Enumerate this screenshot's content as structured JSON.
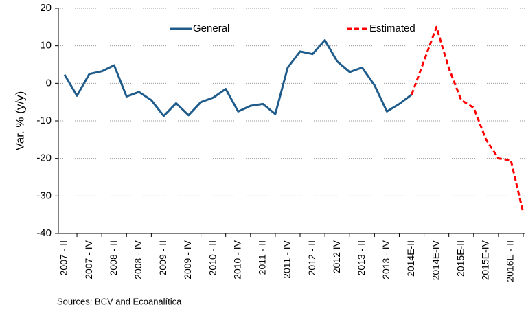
{
  "chart_data": {
    "type": "line",
    "y_label": "Var. % (y/y)",
    "source": "Sources: BCV and Ecoanalítica",
    "categories": [
      "2007 - II",
      null,
      "2007 - IV",
      null,
      "2008 - II",
      null,
      "2008 - IV",
      null,
      "2009 - II",
      null,
      "2009 - IV",
      null,
      "2010 - II",
      null,
      "2010 - IV",
      null,
      "2011 - II",
      null,
      "2011 - IV",
      null,
      "2012 - II",
      null,
      "2012 IV",
      null,
      "2013 - II",
      null,
      "2013 - IV",
      null,
      "2014E-II",
      null,
      "2014E-IV",
      null,
      "2015E-II",
      null,
      "2015E-IV",
      null,
      "2016E - II",
      null
    ],
    "series": [
      {
        "name": "General",
        "color": "#1f5c8b",
        "dash": false,
        "values": [
          2.3,
          -3.3,
          2.5,
          3.2,
          4.8,
          -3.5,
          -2.3,
          -4.5,
          -8.7,
          -5.3,
          -8.5,
          -5,
          -3.8,
          -1.5,
          -7.5,
          -6,
          -5.5,
          -8.2,
          4.2,
          8.5,
          7.8,
          11.5,
          5.8,
          3,
          4.2,
          -0.5,
          -7.5,
          -5.5,
          -3,
          null,
          null,
          null,
          null,
          null,
          null,
          null,
          null,
          null
        ]
      },
      {
        "name": "Estimated",
        "color": "#ff0000",
        "dash": true,
        "values": [
          null,
          null,
          null,
          null,
          null,
          null,
          null,
          null,
          null,
          null,
          null,
          null,
          null,
          null,
          null,
          null,
          null,
          null,
          null,
          null,
          null,
          null,
          null,
          null,
          null,
          null,
          null,
          null,
          -3,
          6,
          15,
          4,
          -4.5,
          -6.5,
          -15,
          -20,
          -20.5,
          -34.5
        ]
      }
    ],
    "ylim": [
      -40,
      20
    ],
    "yticks": [
      -40,
      -30,
      -20,
      -10,
      0,
      10,
      20
    ],
    "grid": true
  }
}
